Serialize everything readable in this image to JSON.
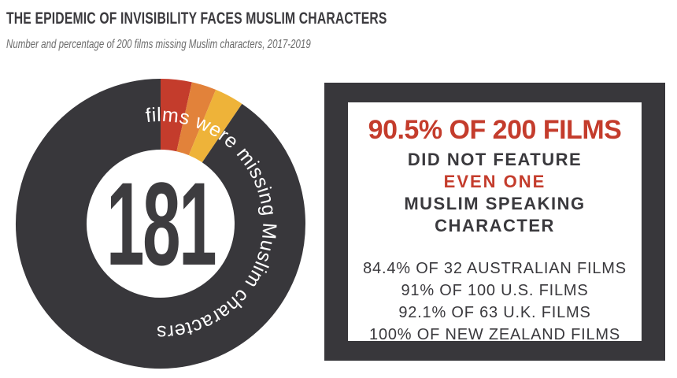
{
  "page": {
    "title": "THE EPIDEMIC OF INVISIBILITY FACES MUSLIM CHARACTERS",
    "subtitle": "Number and percentage of 200 films missing Muslim characters, 2017-2019"
  },
  "colors": {
    "dark_charcoal": "#38373b",
    "accent_red": "#c43c2c",
    "accent_orange": "#e2823a",
    "accent_yellow": "#eeb339",
    "text_dark": "#3a393d",
    "subtitle_gray": "#6d6d6d",
    "white": "#ffffff"
  },
  "chart_data": {
    "type": "pie",
    "donut": true,
    "title": "",
    "center_value": "181",
    "ring_label": "films were missing Muslim characters",
    "total_films": 200,
    "films_missing_muslim_characters": 181,
    "percent_missing": 90.5,
    "legend_position": "none",
    "segments": [
      {
        "name": "red-accent",
        "color": "#c43c2c",
        "angle_deg": 12.5,
        "approx_films": 7
      },
      {
        "name": "orange-accent",
        "color": "#e2823a",
        "angle_deg": 9.9,
        "approx_films": 5
      },
      {
        "name": "yellow-accent",
        "color": "#eeb339",
        "angle_deg": 11.8,
        "approx_films": 7
      },
      {
        "name": "films-missing",
        "color": "#38373b",
        "angle_deg": 325.8,
        "approx_films": 181
      }
    ]
  },
  "stat_box": {
    "headline": "90.5% OF 200 FILMS",
    "line_did_not_feature": "DID NOT FEATURE",
    "line_even_one": "EVEN ONE",
    "line_muslim_speaking": "MUSLIM SPEAKING",
    "line_character": "CHARACTER",
    "stats": [
      "84.4% OF 32 AUSTRALIAN FILMS",
      "91% OF 100 U.S. FILMS",
      "92.1% OF 63 U.K. FILMS",
      "100% OF NEW ZEALAND FILMS"
    ]
  }
}
